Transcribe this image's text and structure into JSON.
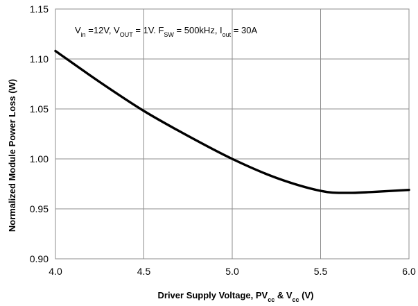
{
  "chart_data": {
    "type": "line",
    "title": "",
    "annotation": {
      "parts": [
        {
          "text": "V",
          "sub": "in"
        },
        {
          "text": " =12V, V",
          "sub": "OUT"
        },
        {
          "text": " = 1V. F",
          "sub": "SW"
        },
        {
          "text": " = 500kHz, I",
          "sub": "out"
        },
        {
          "text": " = 30A",
          "sub": ""
        }
      ]
    },
    "xlabel": {
      "parts": [
        {
          "text": "Driver Supply Voltage, PV",
          "sub": "cc"
        },
        {
          "text": " & V",
          "sub": "cc"
        },
        {
          "text": " (V)",
          "sub": ""
        }
      ]
    },
    "ylabel": "Normalized Module Power Loss (W)",
    "xlim": [
      4.0,
      6.0
    ],
    "ylim": [
      0.9,
      1.15
    ],
    "xticks": [
      "4.0",
      "4.5",
      "5.0",
      "5.5",
      "6.0"
    ],
    "yticks": [
      "0.90",
      "0.95",
      "1.00",
      "1.05",
      "1.10",
      "1.15"
    ],
    "grid": true,
    "series": [
      {
        "name": "",
        "color": "#000000",
        "x": [
          4.0,
          4.25,
          4.5,
          4.75,
          5.0,
          5.25,
          5.5,
          5.65,
          5.8,
          6.0
        ],
        "y": [
          1.108,
          1.077,
          1.048,
          1.023,
          1.0,
          0.981,
          0.968,
          0.966,
          0.967,
          0.969
        ]
      }
    ]
  }
}
